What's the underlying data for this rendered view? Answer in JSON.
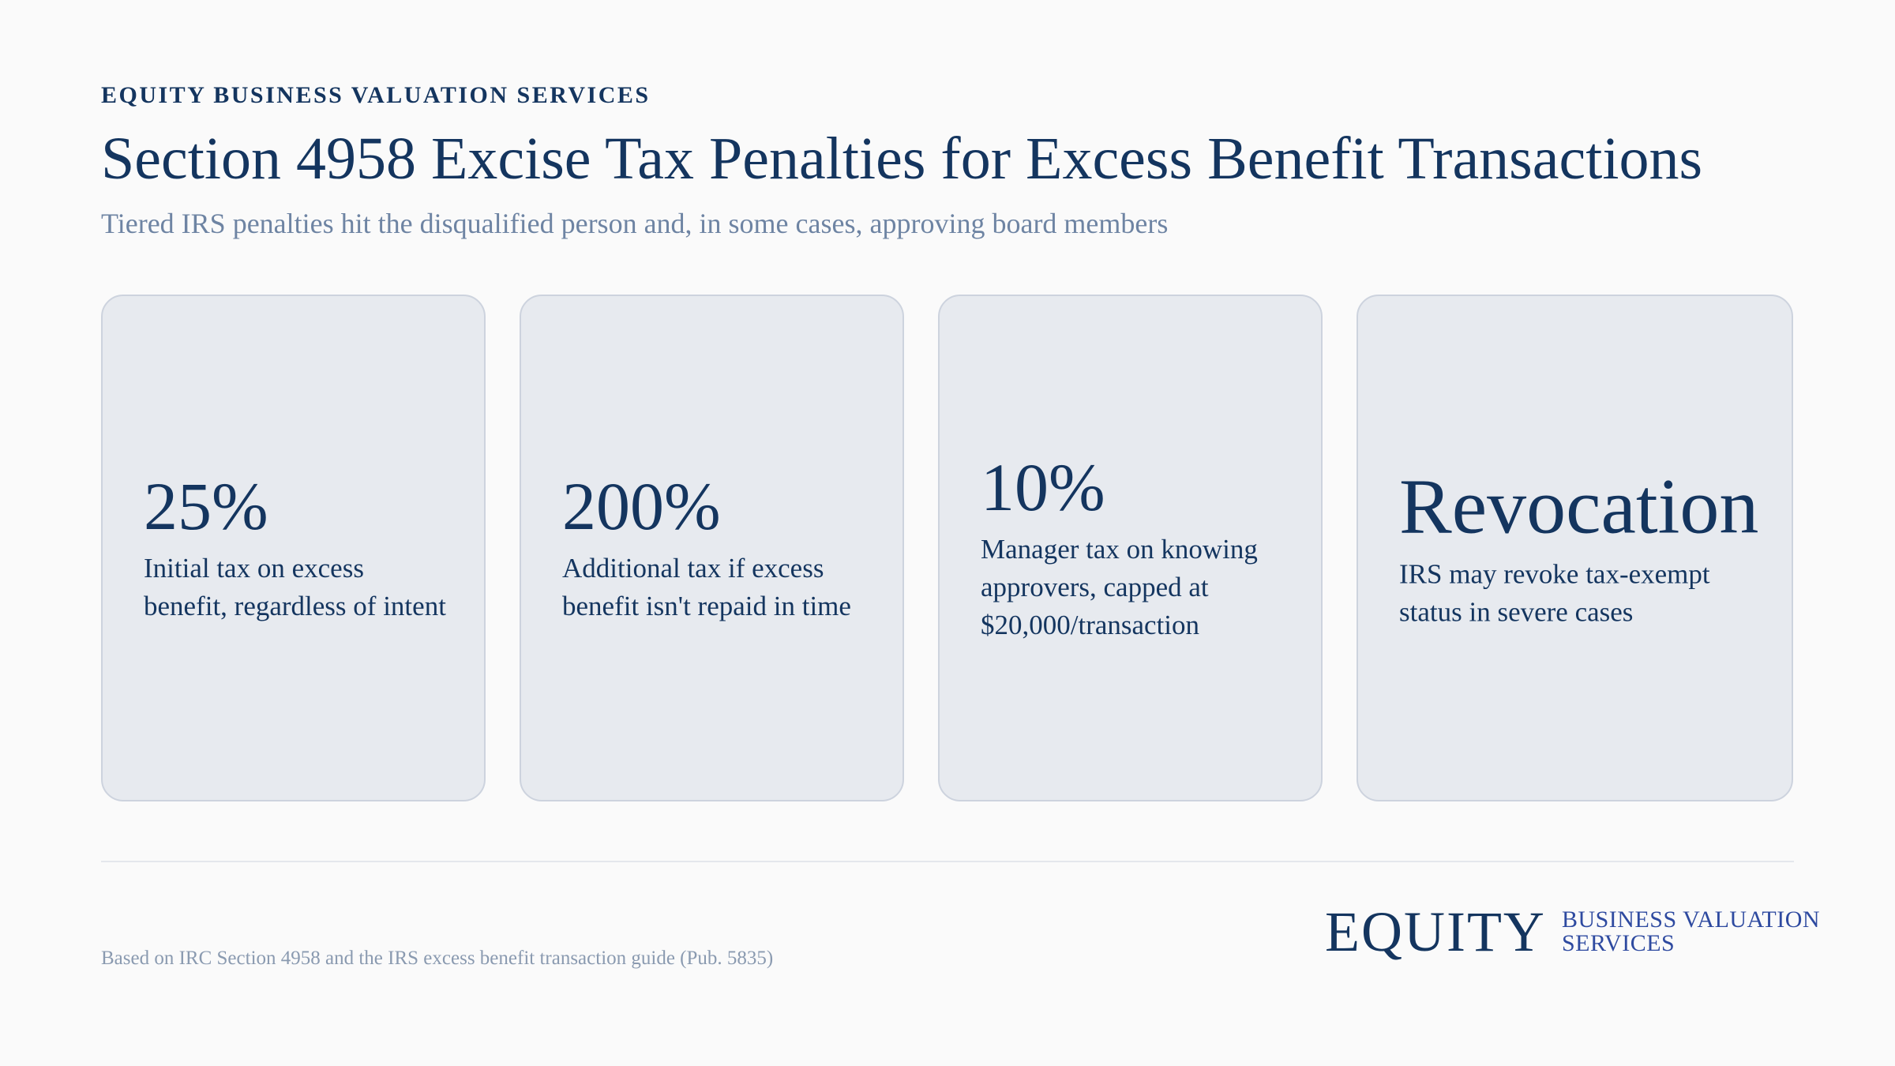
{
  "header": {
    "eyebrow": "EQUITY BUSINESS VALUATION SERVICES",
    "title": "Section 4958 Excise Tax Penalties for Excess Benefit Transactions",
    "subtitle": "Tiered IRS penalties hit the disqualified person and, in some cases, approving board members"
  },
  "cards": [
    {
      "value": "25%",
      "description": "Initial tax on excess benefit, regardless of intent"
    },
    {
      "value": "200%",
      "description": "Additional tax if excess benefit isn't repaid in time"
    },
    {
      "value": "10%",
      "description": "Manager tax on knowing approvers, capped at $20,000/transaction"
    },
    {
      "value": "Revocation",
      "description": "IRS may revoke tax-exempt status in severe cases"
    }
  ],
  "footer": {
    "source": "Based on IRC Section 4958 and the IRS excess benefit transaction guide (Pub. 5835)",
    "logo_word": "EQUITY",
    "logo_sub_line1": "BUSINESS VALUATION",
    "logo_sub_line2": "SERVICES"
  },
  "colors": {
    "primary": "#14355f",
    "muted": "#6e84a3",
    "card_bg": "#e7eaef",
    "card_border": "#cdd3de",
    "logo_accent": "#2e4aa0"
  }
}
